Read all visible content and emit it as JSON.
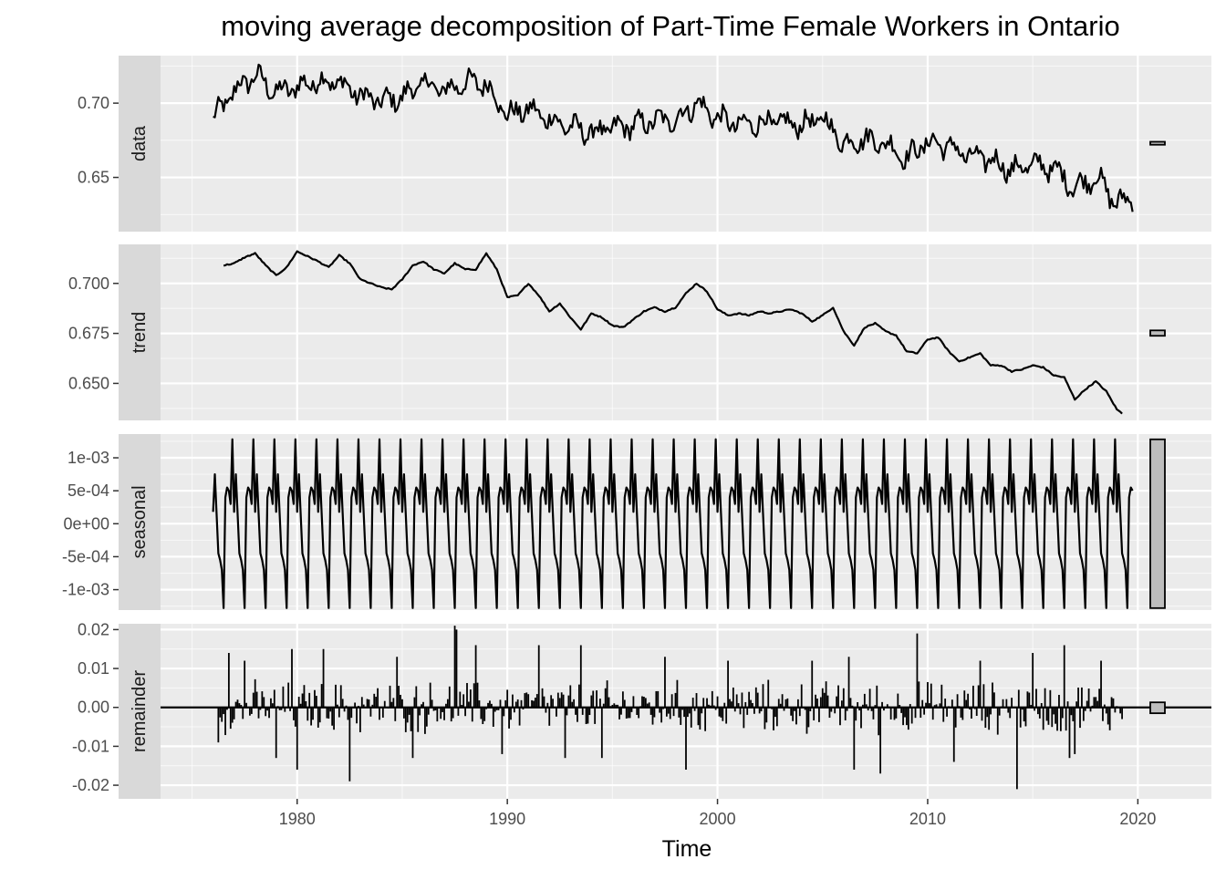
{
  "chart_data": {
    "type": "line",
    "title": "moving average decomposition of Part-Time Female Workers in Ontario",
    "xlabel": "Time",
    "xlim": [
      1973.5,
      2023.5
    ],
    "x_ticks": [
      1980,
      1990,
      2000,
      2010,
      2020
    ],
    "x_tick_labels": [
      "1980",
      "1990",
      "2000",
      "2010",
      "2020"
    ],
    "x_start": 1976.0,
    "x_end": 2019.75,
    "frequency": 12,
    "grid": true,
    "legend": "none",
    "colors": {
      "panel_bg": "#ebebeb",
      "strip_bg": "#d9d9d9",
      "grid_major": "#ffffff",
      "line": "#000000",
      "range_bar": "#bdbdbd"
    },
    "panels": [
      {
        "name": "data",
        "type": "line",
        "ylim": [
          0.6135,
          0.732
        ],
        "y_ticks": [
          0.65,
          0.7
        ],
        "y_tick_labels": [
          "0.65",
          "0.70"
        ],
        "range_bar": [
          0.672,
          0.674
        ],
        "anchors": [
          [
            1976.0,
            0.689
          ],
          [
            1977.0,
            0.708
          ],
          [
            1978.0,
            0.719
          ],
          [
            1979.0,
            0.707
          ],
          [
            1980.0,
            0.711
          ],
          [
            1981.0,
            0.715
          ],
          [
            1982.0,
            0.714
          ],
          [
            1983.0,
            0.705
          ],
          [
            1984.0,
            0.701
          ],
          [
            1985.0,
            0.704
          ],
          [
            1986.0,
            0.714
          ],
          [
            1987.0,
            0.708
          ],
          [
            1988.0,
            0.714
          ],
          [
            1989.0,
            0.713
          ],
          [
            1990.0,
            0.692
          ],
          [
            1991.0,
            0.696
          ],
          [
            1992.0,
            0.689
          ],
          [
            1993.0,
            0.684
          ],
          [
            1994.0,
            0.68
          ],
          [
            1995.0,
            0.683
          ],
          [
            1996.0,
            0.685
          ],
          [
            1997.0,
            0.688
          ],
          [
            1998.0,
            0.689
          ],
          [
            1999.0,
            0.7
          ],
          [
            2000.0,
            0.69
          ],
          [
            2001.0,
            0.685
          ],
          [
            2002.0,
            0.687
          ],
          [
            2003.0,
            0.687
          ],
          [
            2004.0,
            0.685
          ],
          [
            2005.0,
            0.69
          ],
          [
            2006.0,
            0.673
          ],
          [
            2007.0,
            0.676
          ],
          [
            2008.0,
            0.673
          ],
          [
            2009.0,
            0.663
          ],
          [
            2010.0,
            0.674
          ],
          [
            2011.0,
            0.671
          ],
          [
            2012.0,
            0.664
          ],
          [
            2013.0,
            0.662
          ],
          [
            2014.0,
            0.655
          ],
          [
            2015.0,
            0.659
          ],
          [
            2016.0,
            0.656
          ],
          [
            2017.0,
            0.643
          ],
          [
            2018.0,
            0.651
          ],
          [
            2019.0,
            0.632
          ],
          [
            2019.75,
            0.637
          ]
        ]
      },
      {
        "name": "trend",
        "type": "line",
        "ylim": [
          0.6315,
          0.7195
        ],
        "y_ticks": [
          0.65,
          0.675,
          0.7
        ],
        "y_tick_labels": [
          "0.650",
          "0.675",
          "0.700"
        ],
        "range_bar": [
          0.6738,
          0.6765
        ],
        "anchors": [
          [
            1976.5,
            0.709
          ],
          [
            1977.0,
            0.71
          ],
          [
            1977.5,
            0.713
          ],
          [
            1978.0,
            0.715
          ],
          [
            1978.5,
            0.709
          ],
          [
            1979.0,
            0.704
          ],
          [
            1979.5,
            0.708
          ],
          [
            1980.0,
            0.716
          ],
          [
            1981.0,
            0.711
          ],
          [
            1981.5,
            0.708
          ],
          [
            1982.0,
            0.714
          ],
          [
            1982.5,
            0.71
          ],
          [
            1983.0,
            0.702
          ],
          [
            1983.5,
            0.7
          ],
          [
            1984.0,
            0.698
          ],
          [
            1984.5,
            0.697
          ],
          [
            1985.0,
            0.702
          ],
          [
            1985.5,
            0.709
          ],
          [
            1986.0,
            0.711
          ],
          [
            1986.5,
            0.707
          ],
          [
            1987.0,
            0.705
          ],
          [
            1987.5,
            0.71
          ],
          [
            1988.0,
            0.707
          ],
          [
            1988.5,
            0.707
          ],
          [
            1989.0,
            0.715
          ],
          [
            1989.5,
            0.707
          ],
          [
            1990.0,
            0.693
          ],
          [
            1990.5,
            0.694
          ],
          [
            1991.0,
            0.7
          ],
          [
            1991.5,
            0.694
          ],
          [
            1992.0,
            0.686
          ],
          [
            1992.5,
            0.69
          ],
          [
            1993.0,
            0.683
          ],
          [
            1993.5,
            0.677
          ],
          [
            1994.0,
            0.685
          ],
          [
            1994.5,
            0.683
          ],
          [
            1995.0,
            0.679
          ],
          [
            1995.5,
            0.678
          ],
          [
            1996.0,
            0.682
          ],
          [
            1996.5,
            0.686
          ],
          [
            1997.0,
            0.688
          ],
          [
            1997.5,
            0.686
          ],
          [
            1998.0,
            0.688
          ],
          [
            1998.5,
            0.695
          ],
          [
            1999.0,
            0.7
          ],
          [
            1999.5,
            0.696
          ],
          [
            2000.0,
            0.687
          ],
          [
            2000.5,
            0.684
          ],
          [
            2001.0,
            0.685
          ],
          [
            2001.5,
            0.684
          ],
          [
            2002.0,
            0.686
          ],
          [
            2002.5,
            0.685
          ],
          [
            2003.0,
            0.686
          ],
          [
            2003.5,
            0.687
          ],
          [
            2004.0,
            0.685
          ],
          [
            2004.5,
            0.681
          ],
          [
            2005.0,
            0.684
          ],
          [
            2005.5,
            0.688
          ],
          [
            2006.0,
            0.676
          ],
          [
            2006.5,
            0.669
          ],
          [
            2007.0,
            0.678
          ],
          [
            2007.5,
            0.68
          ],
          [
            2008.0,
            0.676
          ],
          [
            2008.5,
            0.674
          ],
          [
            2009.0,
            0.666
          ],
          [
            2009.5,
            0.665
          ],
          [
            2010.0,
            0.672
          ],
          [
            2010.5,
            0.673
          ],
          [
            2011.0,
            0.666
          ],
          [
            2011.5,
            0.661
          ],
          [
            2012.0,
            0.663
          ],
          [
            2012.5,
            0.665
          ],
          [
            2013.0,
            0.659
          ],
          [
            2013.5,
            0.659
          ],
          [
            2014.0,
            0.656
          ],
          [
            2014.5,
            0.657
          ],
          [
            2015.0,
            0.659
          ],
          [
            2015.5,
            0.658
          ],
          [
            2016.0,
            0.654
          ],
          [
            2016.5,
            0.653
          ],
          [
            2017.0,
            0.642
          ],
          [
            2017.5,
            0.647
          ],
          [
            2018.0,
            0.651
          ],
          [
            2018.5,
            0.646
          ],
          [
            2019.0,
            0.637
          ],
          [
            2019.25,
            0.635
          ]
        ]
      },
      {
        "name": "seasonal",
        "type": "line",
        "ylim": [
          -0.00131,
          0.00136
        ],
        "y_ticks": [
          -0.001,
          -0.0005,
          0.0,
          0.0005,
          0.001
        ],
        "y_tick_labels": [
          "-1e-03",
          "-5e-04",
          "0e+00",
          "5e-04",
          "1e-03"
        ],
        "range_bar": [
          -0.00128,
          0.00128
        ],
        "monthly_pattern": [
          0.00018,
          0.00075,
          0.00015,
          -0.00045,
          -0.00055,
          -0.0007,
          -0.00128,
          0.0004,
          0.00055,
          0.0005,
          0.0003,
          0.00128
        ]
      },
      {
        "name": "remainder",
        "type": "bar",
        "ylim": [
          -0.0235,
          0.0215
        ],
        "y_ticks": [
          -0.02,
          -0.01,
          0.0,
          0.01,
          0.02
        ],
        "y_tick_labels": [
          "-0.02",
          "-0.01",
          "0.00",
          "0.01",
          "0.02"
        ],
        "range_bar": [
          -0.0015,
          0.0013
        ],
        "amplitude": 0.008,
        "highlights": [
          [
            1976.25,
            -0.009
          ],
          [
            1976.75,
            0.014
          ],
          [
            1977.5,
            0.012
          ],
          [
            1979.0,
            -0.013
          ],
          [
            1979.75,
            0.015
          ],
          [
            1980.0,
            -0.016
          ],
          [
            1981.25,
            0.015
          ],
          [
            1982.5,
            -0.019
          ],
          [
            1984.75,
            0.013
          ],
          [
            1985.5,
            -0.013
          ],
          [
            1987.5,
            0.021
          ],
          [
            1987.58,
            0.02
          ],
          [
            1988.5,
            0.016
          ],
          [
            1989.75,
            -0.012
          ],
          [
            1991.5,
            0.016
          ],
          [
            1992.75,
            -0.013
          ],
          [
            1993.5,
            0.016
          ],
          [
            1994.5,
            -0.013
          ],
          [
            1997.5,
            0.013
          ],
          [
            1998.5,
            -0.016
          ],
          [
            2000.5,
            0.012
          ],
          [
            2004.5,
            0.012
          ],
          [
            2006.25,
            0.013
          ],
          [
            2006.5,
            -0.016
          ],
          [
            2007.75,
            -0.017
          ],
          [
            2009.5,
            0.019
          ],
          [
            2011.25,
            -0.014
          ],
          [
            2012.5,
            0.012
          ],
          [
            2014.25,
            -0.021
          ],
          [
            2015.0,
            0.014
          ],
          [
            2016.5,
            0.016
          ],
          [
            2016.75,
            -0.013
          ],
          [
            2017.0,
            -0.012
          ],
          [
            2018.25,
            0.012
          ],
          [
            2019.25,
            -0.003
          ]
        ]
      }
    ]
  }
}
